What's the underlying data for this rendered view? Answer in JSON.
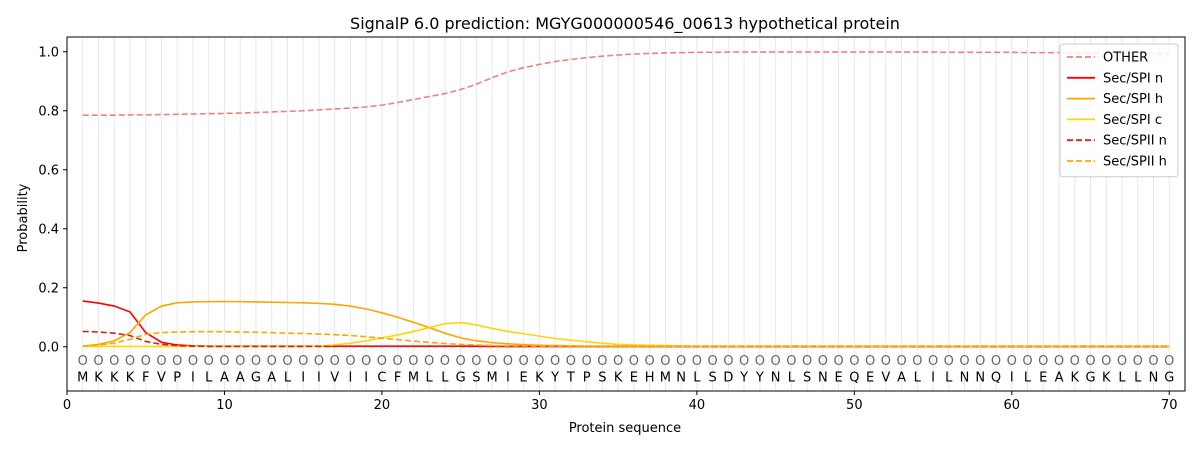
{
  "chart_data": {
    "type": "line",
    "title": "SignalP 6.0 prediction: MGYG000000546_00613 hypothetical protein",
    "xlabel": "Protein sequence",
    "ylabel": "Probability",
    "xlim": [
      0,
      71
    ],
    "ylim": [
      -0.15,
      1.05
    ],
    "xticks": [
      0,
      10,
      20,
      30,
      40,
      50,
      60,
      70
    ],
    "yticks": [
      0.0,
      0.2,
      0.4,
      0.6,
      0.8,
      1.0
    ],
    "ytick_labels": [
      "0.0",
      "0.2",
      "0.4",
      "0.6",
      "0.8",
      "1.0"
    ],
    "grid": "vertical lines at every residue",
    "legend_position": "top-right",
    "sequence": [
      "M",
      "K",
      "K",
      "K",
      "F",
      "V",
      "P",
      "I",
      "L",
      "A",
      "A",
      "G",
      "A",
      "L",
      "I",
      "I",
      "V",
      "I",
      "I",
      "C",
      "F",
      "M",
      "L",
      "L",
      "G",
      "S",
      "M",
      "I",
      "E",
      "K",
      "Y",
      "T",
      "P",
      "S",
      "K",
      "E",
      "H",
      "M",
      "N",
      "L",
      "S",
      "D",
      "Y",
      "Y",
      "N",
      "L",
      "S",
      "N",
      "E",
      "Q",
      "E",
      "V",
      "A",
      "L",
      "I",
      "L",
      "N",
      "N",
      "Q",
      "I",
      "L",
      "E",
      "A",
      "K",
      "G",
      "K",
      "L",
      "L",
      "N",
      "G"
    ],
    "prediction_labels": [
      "O",
      "O",
      "O",
      "O",
      "O",
      "O",
      "O",
      "O",
      "O",
      "O",
      "O",
      "O",
      "O",
      "O",
      "O",
      "O",
      "O",
      "O",
      "O",
      "O",
      "O",
      "O",
      "O",
      "O",
      "O",
      "O",
      "O",
      "O",
      "O",
      "O",
      "O",
      "O",
      "O",
      "O",
      "O",
      "O",
      "O",
      "O",
      "O",
      "O",
      "O",
      "O",
      "O",
      "O",
      "O",
      "O",
      "O",
      "O",
      "O",
      "O",
      "O",
      "O",
      "O",
      "O",
      "O",
      "O",
      "O",
      "O",
      "O",
      "O",
      "O",
      "O",
      "O",
      "O",
      "O",
      "O",
      "O",
      "O",
      "O",
      "O"
    ],
    "series": [
      {
        "name": "OTHER",
        "color": "#f08080",
        "dash": "dashed",
        "values": [
          0.785,
          0.785,
          0.785,
          0.786,
          0.786,
          0.787,
          0.788,
          0.789,
          0.79,
          0.791,
          0.792,
          0.794,
          0.796,
          0.798,
          0.8,
          0.803,
          0.806,
          0.809,
          0.813,
          0.819,
          0.828,
          0.838,
          0.848,
          0.858,
          0.872,
          0.89,
          0.912,
          0.932,
          0.946,
          0.957,
          0.967,
          0.974,
          0.98,
          0.985,
          0.989,
          0.992,
          0.994,
          0.996,
          0.997,
          0.998,
          0.998,
          0.999,
          0.999,
          0.999,
          0.999,
          0.999,
          0.999,
          0.999,
          0.999,
          0.999,
          0.999,
          0.999,
          0.999,
          0.999,
          0.999,
          0.998,
          0.998,
          0.998,
          0.998,
          0.998,
          0.997,
          0.997,
          0.997,
          0.996,
          0.996,
          0.996,
          0.995,
          0.995,
          0.994,
          0.994
        ]
      },
      {
        "name": "Sec/SPI n",
        "color": "#ff0000",
        "dash": "solid",
        "values": [
          0.155,
          0.148,
          0.138,
          0.118,
          0.048,
          0.015,
          0.006,
          0.003,
          0.002,
          0.002,
          0.002,
          0.002,
          0.002,
          0.002,
          0.002,
          0.002,
          0.002,
          0.002,
          0.002,
          0.002,
          0.002,
          0.002,
          0.002,
          0.002,
          0.002,
          0.002,
          0.001,
          0.001,
          0.001,
          0.001,
          0.001,
          0.001,
          0.001,
          0.001,
          0.001,
          0.001,
          0.001,
          0.001,
          0.001,
          0.001,
          0.001,
          0.001,
          0.001,
          0.001,
          0.001,
          0.001,
          0.001,
          0.001,
          0.001,
          0.001,
          0.001,
          0.001,
          0.001,
          0.001,
          0.001,
          0.001,
          0.001,
          0.001,
          0.001,
          0.001,
          0.001,
          0.001,
          0.001,
          0.001,
          0.001,
          0.001,
          0.001,
          0.001,
          0.001,
          0.001
        ]
      },
      {
        "name": "Sec/SPI h",
        "color": "#ffa500",
        "dash": "solid",
        "values": [
          0.002,
          0.008,
          0.02,
          0.048,
          0.108,
          0.138,
          0.149,
          0.152,
          0.153,
          0.153,
          0.153,
          0.152,
          0.151,
          0.15,
          0.149,
          0.147,
          0.144,
          0.138,
          0.128,
          0.115,
          0.1,
          0.083,
          0.065,
          0.046,
          0.03,
          0.02,
          0.014,
          0.01,
          0.007,
          0.005,
          0.004,
          0.003,
          0.002,
          0.002,
          0.002,
          0.002,
          0.002,
          0.002,
          0.002,
          0.002,
          0.002,
          0.002,
          0.002,
          0.002,
          0.002,
          0.002,
          0.002,
          0.002,
          0.002,
          0.002,
          0.002,
          0.002,
          0.002,
          0.002,
          0.002,
          0.002,
          0.002,
          0.002,
          0.002,
          0.002,
          0.002,
          0.002,
          0.002,
          0.002,
          0.002,
          0.002,
          0.002,
          0.002,
          0.002,
          0.002
        ]
      },
      {
        "name": "Sec/SPI c",
        "color": "#ffd700",
        "dash": "solid",
        "values": [
          0.001,
          0.001,
          0.001,
          0.001,
          0.001,
          0.001,
          0.001,
          0.001,
          0.001,
          0.001,
          0.001,
          0.001,
          0.001,
          0.001,
          0.001,
          0.002,
          0.006,
          0.012,
          0.02,
          0.03,
          0.04,
          0.052,
          0.065,
          0.078,
          0.082,
          0.074,
          0.062,
          0.052,
          0.044,
          0.036,
          0.028,
          0.022,
          0.017,
          0.012,
          0.008,
          0.006,
          0.005,
          0.004,
          0.003,
          0.002,
          0.002,
          0.002,
          0.002,
          0.002,
          0.002,
          0.002,
          0.002,
          0.002,
          0.002,
          0.002,
          0.002,
          0.002,
          0.002,
          0.002,
          0.002,
          0.002,
          0.002,
          0.002,
          0.002,
          0.002,
          0.002,
          0.002,
          0.002,
          0.002,
          0.002,
          0.002,
          0.002,
          0.002,
          0.002,
          0.002
        ]
      },
      {
        "name": "Sec/SPII n",
        "color": "#d62020",
        "dash": "dashed",
        "values": [
          0.052,
          0.05,
          0.046,
          0.038,
          0.018,
          0.008,
          0.004,
          0.002,
          0.001,
          0.001,
          0.001,
          0.001,
          0.001,
          0.001,
          0.001,
          0.001,
          0.001,
          0.001,
          0.001,
          0.001,
          0.001,
          0.001,
          0.001,
          0.001,
          0.001,
          0.001,
          0.001,
          0.001,
          0.001,
          0.001,
          0.001,
          0.001,
          0.001,
          0.001,
          0.001,
          0.001,
          0.001,
          0.001,
          0.001,
          0.001,
          0.001,
          0.001,
          0.001,
          0.001,
          0.001,
          0.001,
          0.001,
          0.001,
          0.001,
          0.001,
          0.001,
          0.001,
          0.001,
          0.001,
          0.001,
          0.001,
          0.001,
          0.001,
          0.001,
          0.001,
          0.001,
          0.001,
          0.001,
          0.001,
          0.001,
          0.001,
          0.001,
          0.001,
          0.001,
          0.001
        ]
      },
      {
        "name": "Sec/SPII h",
        "color": "#ffa500",
        "dash": "dashed",
        "values": [
          0.002,
          0.006,
          0.012,
          0.025,
          0.042,
          0.048,
          0.05,
          0.051,
          0.051,
          0.051,
          0.05,
          0.049,
          0.048,
          0.046,
          0.045,
          0.043,
          0.041,
          0.038,
          0.034,
          0.029,
          0.024,
          0.019,
          0.015,
          0.011,
          0.008,
          0.006,
          0.004,
          0.003,
          0.003,
          0.002,
          0.002,
          0.002,
          0.002,
          0.002,
          0.002,
          0.002,
          0.002,
          0.002,
          0.002,
          0.002,
          0.002,
          0.002,
          0.002,
          0.002,
          0.002,
          0.002,
          0.002,
          0.002,
          0.002,
          0.002,
          0.002,
          0.002,
          0.002,
          0.002,
          0.002,
          0.002,
          0.002,
          0.002,
          0.002,
          0.002,
          0.002,
          0.002,
          0.002,
          0.002,
          0.002,
          0.002,
          0.002,
          0.002,
          0.002,
          0.002
        ]
      }
    ]
  }
}
